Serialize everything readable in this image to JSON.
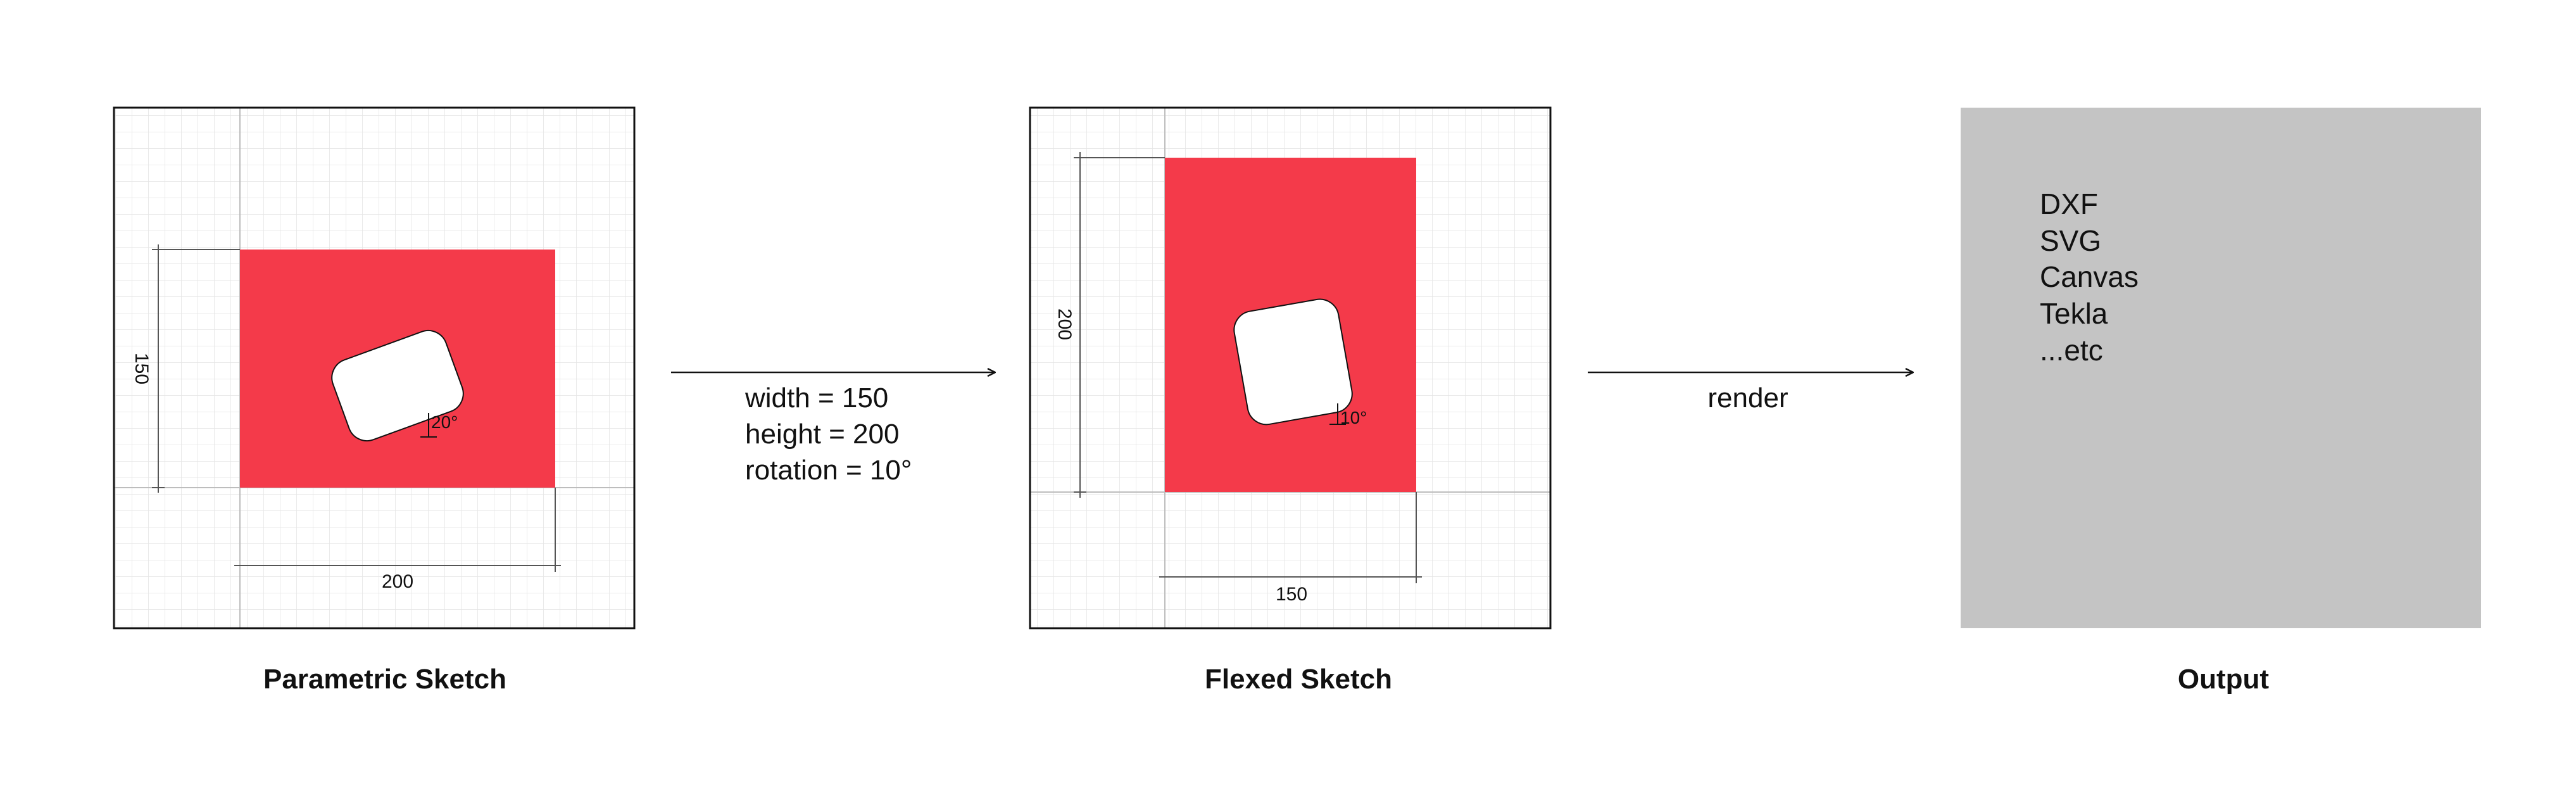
{
  "panels": {
    "parametric": {
      "title": "Parametric Sketch",
      "dim_height": "150",
      "dim_width": "200",
      "angle": "20°"
    },
    "flexed": {
      "title": "Flexed Sketch",
      "dim_height": "200",
      "dim_width": "150",
      "angle": "10°"
    },
    "output": {
      "title": "Output",
      "formats": [
        "DXF",
        "SVG",
        "Canvas",
        "Tekla",
        "...etc"
      ]
    }
  },
  "params": [
    "width = 150",
    "height = 200",
    "rotation = 10°"
  ],
  "render_label": "render",
  "colors": {
    "shape_fill": "#f43a4a",
    "output_bg": "#c4c4c4",
    "grid_line": "#e6e6e6",
    "axis_line": "#bdbdbd",
    "text": "#111111"
  }
}
